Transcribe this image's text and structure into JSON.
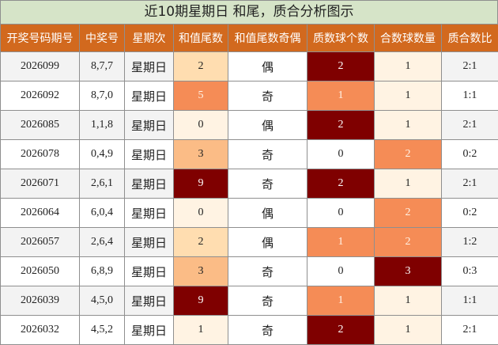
{
  "title": "近10期星期日 和尾，质合分析图示",
  "headers": [
    "开奖号码期号",
    "中奖号",
    "星期次",
    "和值尾数",
    "和值尾数奇偶",
    "质数球个数",
    "合数球数量",
    "质合数比"
  ],
  "rows": [
    {
      "issue": "2026099",
      "numbers": "8,7,7",
      "weekday": "星期日",
      "tail": "2",
      "parity": "偶",
      "prime_count": "2",
      "composite_count": "1",
      "ratio": "2:1"
    },
    {
      "issue": "2026092",
      "numbers": "8,7,0",
      "weekday": "星期日",
      "tail": "5",
      "parity": "奇",
      "prime_count": "1",
      "composite_count": "1",
      "ratio": "1:1"
    },
    {
      "issue": "2026085",
      "numbers": "1,1,8",
      "weekday": "星期日",
      "tail": "0",
      "parity": "偶",
      "prime_count": "2",
      "composite_count": "1",
      "ratio": "2:1"
    },
    {
      "issue": "2026078",
      "numbers": "0,4,9",
      "weekday": "星期日",
      "tail": "3",
      "parity": "奇",
      "prime_count": "0",
      "composite_count": "2",
      "ratio": "0:2"
    },
    {
      "issue": "2026071",
      "numbers": "2,6,1",
      "weekday": "星期日",
      "tail": "9",
      "parity": "奇",
      "prime_count": "2",
      "composite_count": "1",
      "ratio": "2:1"
    },
    {
      "issue": "2026064",
      "numbers": "6,0,4",
      "weekday": "星期日",
      "tail": "0",
      "parity": "偶",
      "prime_count": "0",
      "composite_count": "2",
      "ratio": "0:2"
    },
    {
      "issue": "2026057",
      "numbers": "2,6,4",
      "weekday": "星期日",
      "tail": "2",
      "parity": "偶",
      "prime_count": "1",
      "composite_count": "2",
      "ratio": "1:2"
    },
    {
      "issue": "2026050",
      "numbers": "6,8,9",
      "weekday": "星期日",
      "tail": "3",
      "parity": "奇",
      "prime_count": "0",
      "composite_count": "3",
      "ratio": "0:3"
    },
    {
      "issue": "2026039",
      "numbers": "4,5,0",
      "weekday": "星期日",
      "tail": "9",
      "parity": "奇",
      "prime_count": "1",
      "composite_count": "1",
      "ratio": "1:1"
    },
    {
      "issue": "2026032",
      "numbers": "4,5,2",
      "weekday": "星期日",
      "tail": "1",
      "parity": "奇",
      "prime_count": "2",
      "composite_count": "1",
      "ratio": "2:1"
    }
  ],
  "colors": {
    "header_bg": "#d2691e",
    "title_bg": "#d6e4c8",
    "heat_darkest": "#7f0000",
    "heat_orange": "#f58c56",
    "heat_light": "#ffddb0"
  }
}
